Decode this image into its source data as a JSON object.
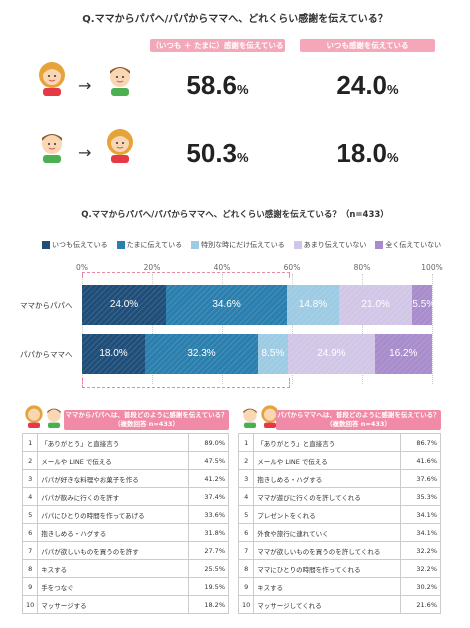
{
  "top": {
    "title": "Q.ママからパパへ/パパからママへ、どれくらい感謝を伝えている？",
    "pill_left": "（いつも ＋ たまに）感謝を伝えている",
    "pill_right": "いつも感謝を伝えている",
    "rows": [
      {
        "arrow": "→",
        "sometimes_value": "58.6",
        "always_value": "24.0",
        "unit": "%"
      },
      {
        "arrow": "→",
        "sometimes_value": "50.3",
        "always_value": "18.0",
        "unit": "%"
      }
    ]
  },
  "chart_data": {
    "type": "bar",
    "title": "Q.ママからパパへ/パパからママへ、どれくらい感謝を伝えている？（n=433）",
    "categories": [
      "ママからパパへ",
      "パパからママへ"
    ],
    "series": [
      {
        "name": "いつも伝えている",
        "values": [
          24.0,
          18.0
        ],
        "color": "#1f4e79"
      },
      {
        "name": "たまに伝えている",
        "values": [
          34.6,
          32.3
        ],
        "color": "#2b7fae"
      },
      {
        "name": "特別な時にだけ伝えている",
        "values": [
          14.8,
          8.5
        ],
        "color": "#9ccbe3"
      },
      {
        "name": "あまり伝えていない",
        "values": [
          21.0,
          24.9
        ],
        "color": "#d1c6e6"
      },
      {
        "name": "全く伝えていない",
        "values": [
          5.5,
          16.2
        ],
        "color": "#a88ccb"
      }
    ],
    "labels": [
      [
        "24.0%",
        "34.6%",
        "14.8%",
        "21.0%",
        "5.5%"
      ],
      [
        "18.0%",
        "32.3%",
        "8.5%",
        "24.9%",
        "16.2%"
      ]
    ],
    "xlim": [
      0,
      100
    ],
    "xticks": [
      "0%",
      "20%",
      "40%",
      "60%",
      "80%",
      "100%"
    ],
    "stacked": true,
    "legend_position": "top"
  },
  "table_left": {
    "title": "ママからパパへは、普段どのように感謝を伝えている？",
    "subtitle": "（複数回答 n=433）",
    "rows": [
      {
        "rank": "1",
        "item": "「ありがとう」と直接言う",
        "value": "89.0%"
      },
      {
        "rank": "2",
        "item": "メールや LINE で伝える",
        "value": "47.5%"
      },
      {
        "rank": "3",
        "item": "パパが好きな料理やお菓子を作る",
        "value": "41.2%"
      },
      {
        "rank": "4",
        "item": "パパが飲みに行くのを許す",
        "value": "37.4%"
      },
      {
        "rank": "5",
        "item": "パパにひとりの時間を作ってあげる",
        "value": "33.6%"
      },
      {
        "rank": "6",
        "item": "抱きしめる・ハグする",
        "value": "31.8%"
      },
      {
        "rank": "7",
        "item": "パパが欲しいものを買うのを許す",
        "value": "27.7%"
      },
      {
        "rank": "8",
        "item": "キスする",
        "value": "25.5%"
      },
      {
        "rank": "9",
        "item": "手をつなぐ",
        "value": "19.5%"
      },
      {
        "rank": "10",
        "item": "マッサージする",
        "value": "18.2%"
      }
    ]
  },
  "table_right": {
    "title": "パパからママへは、普段どのように感謝を伝えている？",
    "subtitle": "（複数回答 n=433）",
    "rows": [
      {
        "rank": "1",
        "item": "「ありがとう」と直接言う",
        "value": "86.7%"
      },
      {
        "rank": "2",
        "item": "メールや LINE で伝える",
        "value": "41.6%"
      },
      {
        "rank": "3",
        "item": "抱きしめる・ハグする",
        "value": "37.6%"
      },
      {
        "rank": "4",
        "item": "ママが遊びに行くのを許してくれる",
        "value": "35.3%"
      },
      {
        "rank": "5",
        "item": "プレゼントをくれる",
        "value": "34.1%"
      },
      {
        "rank": "6",
        "item": "外食や旅行に連れていく",
        "value": "34.1%"
      },
      {
        "rank": "7",
        "item": "ママが欲しいものを買うのを許してくれる",
        "value": "32.2%"
      },
      {
        "rank": "8",
        "item": "ママにひとりの時間を作ってくれる",
        "value": "32.2%"
      },
      {
        "rank": "9",
        "item": "キスする",
        "value": "30.2%"
      },
      {
        "rank": "10",
        "item": "マッサージしてくれる",
        "value": "21.6%"
      }
    ]
  }
}
